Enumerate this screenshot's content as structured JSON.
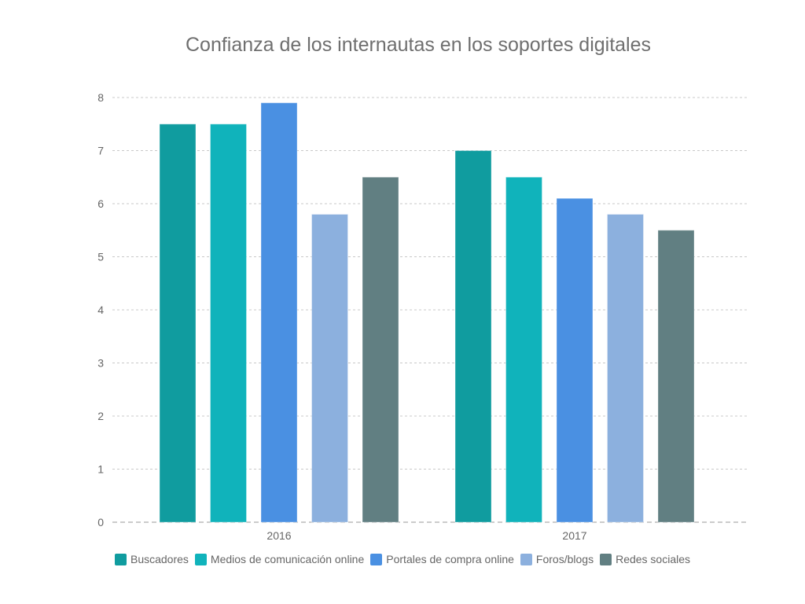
{
  "chart_data": {
    "type": "bar",
    "title": "Confianza de los internautas en los soportes digitales",
    "xlabel": "",
    "ylabel": "",
    "categories": [
      "2016",
      "2017"
    ],
    "series": [
      {
        "name": "Buscadores",
        "color": "#109c9f",
        "values": [
          7.5,
          7.0
        ]
      },
      {
        "name": "Medios de comunicación online",
        "color": "#10b3bb",
        "values": [
          7.5,
          6.5
        ]
      },
      {
        "name": "Portales de compra online",
        "color": "#4a90e2",
        "values": [
          7.9,
          6.1
        ]
      },
      {
        "name": "Foros/blogs",
        "color": "#8cb0de",
        "values": [
          5.8,
          5.8
        ]
      },
      {
        "name": "Redes sociales",
        "color": "#617f82",
        "values": [
          6.5,
          5.5
        ]
      }
    ],
    "ylim": [
      0,
      8
    ],
    "yticks": [
      0,
      1,
      2,
      3,
      4,
      5,
      6,
      7,
      8
    ],
    "grid": true,
    "legend_position": "bottom"
  }
}
